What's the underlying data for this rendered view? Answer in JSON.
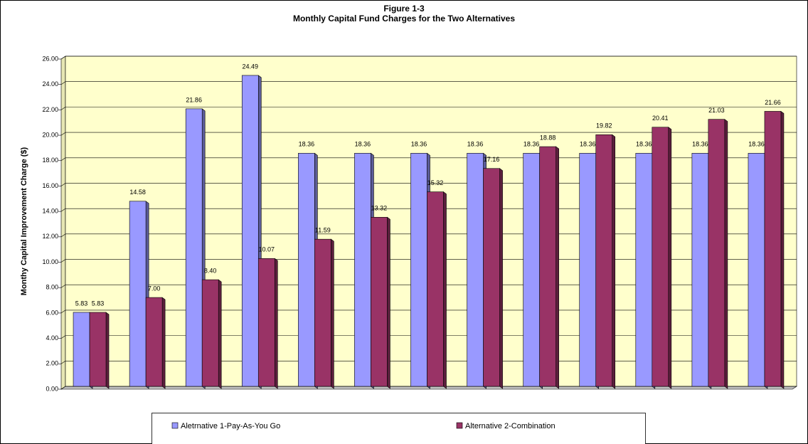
{
  "chart_data": {
    "type": "bar",
    "title": "Figure 1-3",
    "subtitle": "Monthly Capital Fund Charges for the Two Alternatives",
    "y_label": "Monthy Capital Improvement Charge ($)",
    "categories": [
      null,
      null,
      null,
      null,
      null,
      null,
      null,
      null,
      null,
      null,
      null,
      null,
      null
    ],
    "series": [
      {
        "name": "Aletrnative 1-Pay-As-You Go",
        "color": "#9999ff",
        "values": [
          5.83,
          14.58,
          21.86,
          24.49,
          18.36,
          18.36,
          18.36,
          18.36,
          18.36,
          18.36,
          18.36,
          18.36,
          18.36
        ],
        "value_labels": [
          "5.83",
          "14.58",
          "21.86",
          "24.49",
          "18.36",
          "18.36",
          "18.36",
          "18.36",
          "18.36",
          "18.36",
          "18.36",
          "18.36",
          "18.36"
        ]
      },
      {
        "name": "Alternative 2-Combination",
        "color": "#993366",
        "values": [
          5.83,
          7.0,
          8.4,
          10.07,
          11.59,
          13.32,
          15.32,
          17.16,
          18.88,
          19.82,
          20.41,
          21.03,
          21.66
        ],
        "value_labels": [
          "5.83",
          "7.00",
          "8.40",
          "10.07",
          "11.59",
          "13.32",
          "15.32",
          "17.16",
          "18.88",
          "19.82",
          "20.41",
          "21.03",
          "21.66"
        ]
      }
    ],
    "ylim": [
      0,
      26
    ],
    "yticks": [
      {
        "value": 0,
        "label": "0.00"
      },
      {
        "value": 2,
        "label": "2.00"
      },
      {
        "value": 4,
        "label": "4.00"
      },
      {
        "value": 6,
        "label": "6.00"
      },
      {
        "value": 8,
        "label": "8.00"
      },
      {
        "value": 10,
        "label": "10.00"
      },
      {
        "value": 12,
        "label": "12.00"
      },
      {
        "value": 14,
        "label": "14.00"
      },
      {
        "value": 16,
        "label": "16.00"
      },
      {
        "value": 18,
        "label": "18.00"
      },
      {
        "value": 20,
        "label": "20.00"
      },
      {
        "value": 22,
        "label": "22.00"
      },
      {
        "value": 24,
        "label": "24.00"
      },
      {
        "value": 26,
        "label": "26.00"
      }
    ],
    "grid": true,
    "legend": "bottom"
  }
}
